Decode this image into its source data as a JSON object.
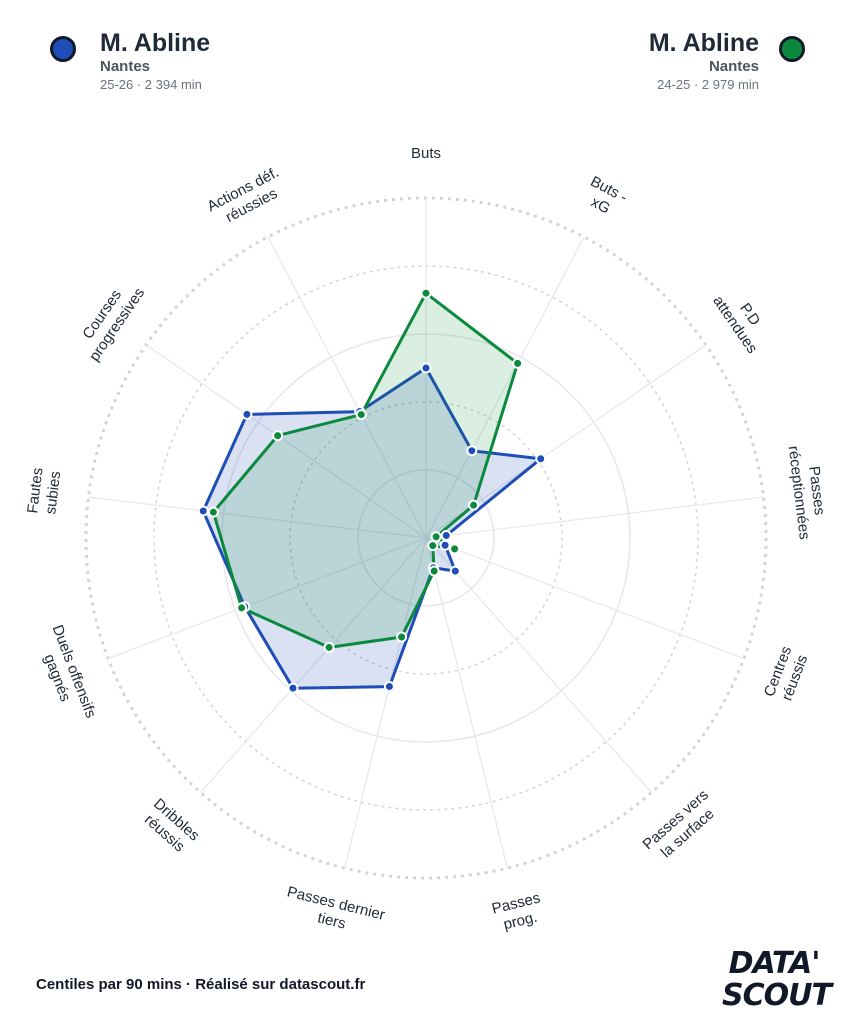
{
  "player_a": {
    "name": "M. Abline",
    "club": "Nantes",
    "meta": "25-26 · 2 394 min",
    "color": "#1e4db7"
  },
  "player_b": {
    "name": "M. Abline",
    "club": "Nantes",
    "meta": "24-25 · 2 979 min",
    "color": "#0b8a3e"
  },
  "footer": "Centiles par 90 mins · Réalisé sur datascout.fr",
  "logo": {
    "line1": "DATA'",
    "line2": "SCOUT"
  },
  "chart_data": {
    "type": "radar",
    "scale": "percentile",
    "range": [
      0,
      100
    ],
    "grid": true,
    "axes": [
      [
        "Buts"
      ],
      [
        "Buts -",
        "xG"
      ],
      [
        "P.D",
        "attendues"
      ],
      [
        "Passes",
        "réceptionnées"
      ],
      [
        "Centres",
        "réussis"
      ],
      [
        "Passes vers",
        "la surface"
      ],
      [
        "Passes",
        "prog."
      ],
      [
        "Passes dernier",
        "tiers"
      ],
      [
        "Dribbles",
        "réussis"
      ],
      [
        "Duels offensifs",
        "gagnés"
      ],
      [
        "Fautes",
        "subies"
      ],
      [
        "Courses",
        "progressives"
      ],
      [
        "Actions déf.",
        "réussies"
      ]
    ],
    "series": [
      {
        "name": "M. Abline 25-26",
        "values": [
          50,
          29,
          41,
          6,
          6,
          13,
          9,
          45,
          59,
          57,
          66,
          64,
          42
        ]
      },
      {
        "name": "M. Abline 24-25",
        "values": [
          72,
          58,
          17,
          3,
          9,
          3,
          10,
          30,
          43,
          58,
          63,
          53,
          41
        ]
      }
    ]
  }
}
